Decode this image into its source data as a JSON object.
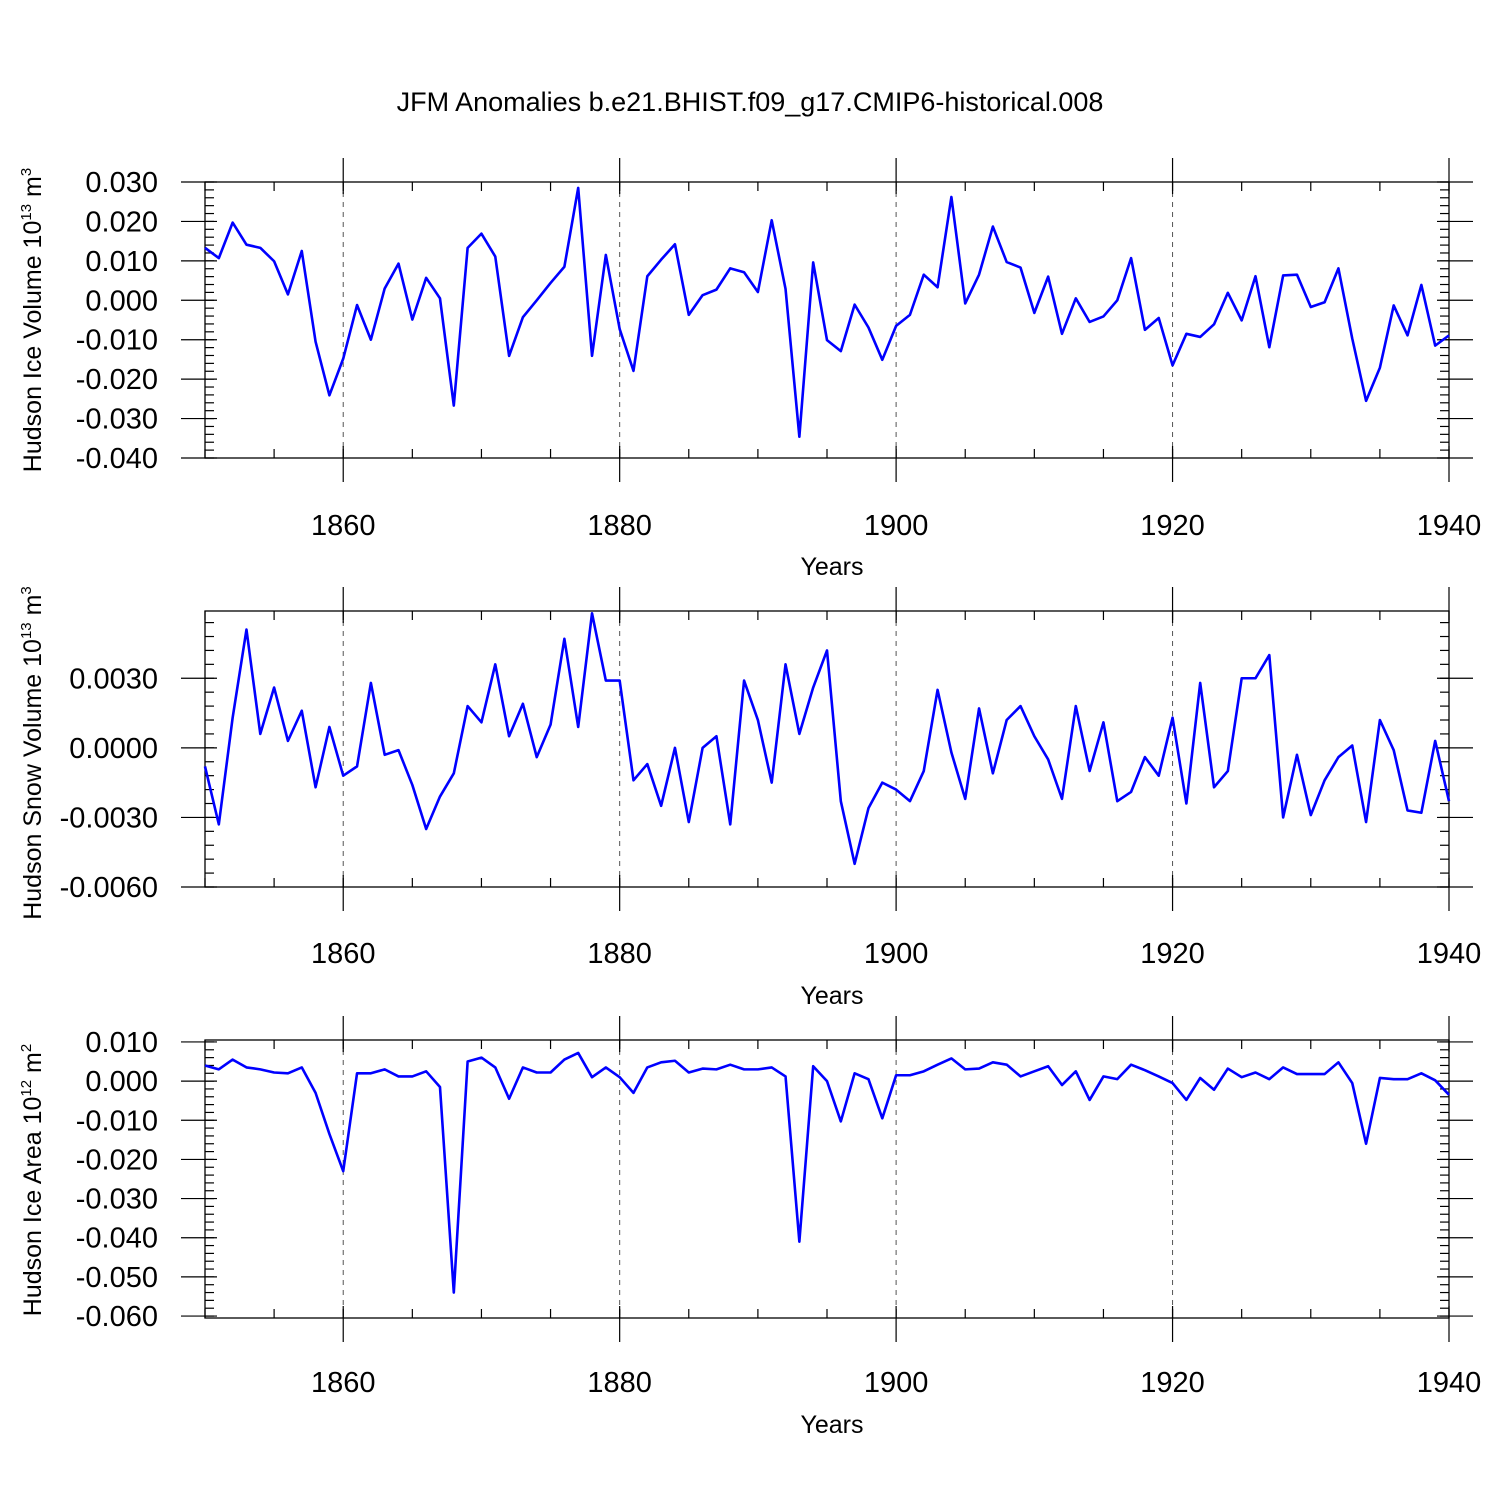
{
  "figure": {
    "title": "JFM Anomalies b.e21.BHIST.f09_g17.CMIP6-historical.008",
    "line_color": "#0000ff"
  },
  "chart_data": [
    {
      "type": "line",
      "ylabel_main": "Hudson Ice Volume 10",
      "ylabel_exp": "13",
      "ylabel_unit": " m",
      "ylabel_unit_exp": "3",
      "xlabel": "Years",
      "xlim": [
        1850,
        1940
      ],
      "ylim": [
        -0.04,
        0.03
      ],
      "yticks": [
        -0.04,
        -0.03,
        -0.02,
        -0.01,
        0.0,
        0.01,
        0.02,
        0.03
      ],
      "ytick_labels": [
        "-0.040",
        "-0.030",
        "-0.020",
        "-0.010",
        "0.000",
        "0.010",
        "0.020",
        "0.030"
      ],
      "xticks": [
        1860,
        1880,
        1900,
        1920,
        1940
      ],
      "xtick_labels": [
        "1860",
        "1880",
        "1900",
        "1920",
        "1940"
      ],
      "grid": "dashed vertical",
      "x_start": 1850,
      "values": [
        0.0133,
        0.0107,
        0.0197,
        0.0141,
        0.0133,
        0.0099,
        0.0015,
        0.0125,
        -0.0105,
        -0.0241,
        -0.0148,
        -0.0012,
        -0.01,
        0.003,
        0.0093,
        -0.0049,
        0.0057,
        0.0005,
        -0.0267,
        0.0133,
        0.0169,
        0.0111,
        -0.0141,
        -0.0043,
        0.0,
        0.0044,
        0.0085,
        0.0285,
        -0.0141,
        0.0115,
        -0.0073,
        -0.0179,
        0.0061,
        0.0103,
        0.0142,
        -0.0037,
        0.0013,
        0.0027,
        0.0081,
        0.0071,
        0.0021,
        0.0203,
        0.0029,
        -0.0346,
        0.0096,
        -0.0101,
        -0.0129,
        -0.0011,
        -0.0069,
        -0.0151,
        -0.0065,
        -0.0037,
        0.0065,
        0.0033,
        0.0262,
        -0.0008,
        0.0065,
        0.0187,
        0.0097,
        0.0083,
        -0.0032,
        0.006,
        -0.0085,
        0.0005,
        -0.0055,
        -0.0041,
        0.0,
        0.0107,
        -0.0075,
        -0.0045,
        -0.0165,
        -0.0085,
        -0.0093,
        -0.0061,
        0.0019,
        -0.0051,
        0.0061,
        -0.0119,
        0.0063,
        0.0065,
        -0.0017,
        -0.0005,
        0.0081,
        -0.0097,
        -0.0255,
        -0.0171,
        -0.0013,
        -0.0089,
        0.0039,
        -0.0115,
        -0.0089
      ]
    },
    {
      "type": "line",
      "ylabel_main": "Hudson Snow Volume 10",
      "ylabel_exp": "13",
      "ylabel_unit": " m",
      "ylabel_unit_exp": "3",
      "xlabel": "Years",
      "xlim": [
        1850,
        1940
      ],
      "ylim": [
        -0.006,
        0.006
      ],
      "yticks": [
        -0.006,
        -0.003,
        0.0,
        0.003
      ],
      "ytick_labels": [
        "-0.0060",
        "-0.0030",
        "0.0000",
        "0.0030"
      ],
      "xticks": [
        1860,
        1880,
        1900,
        1920,
        1940
      ],
      "xtick_labels": [
        "1860",
        "1880",
        "1900",
        "1920",
        "1940"
      ],
      "grid": "dashed vertical",
      "x_start": 1850,
      "values": [
        -0.0008,
        -0.0033,
        0.0013,
        0.0051,
        0.0006,
        0.0026,
        0.0003,
        0.0016,
        -0.0017,
        0.0009,
        -0.0012,
        -0.0008,
        0.0028,
        -0.0003,
        -0.0001,
        -0.0016,
        -0.0035,
        -0.0021,
        -0.0011,
        0.0018,
        0.0011,
        0.0036,
        0.0005,
        0.0019,
        -0.0004,
        0.001,
        0.0047,
        0.0009,
        0.0058,
        0.0029,
        0.0029,
        -0.0014,
        -0.0007,
        -0.0025,
        0.0,
        -0.0032,
        0.0,
        0.0005,
        -0.0033,
        0.0029,
        0.0012,
        -0.0015,
        0.0036,
        0.0006,
        0.0026,
        0.0042,
        -0.0023,
        -0.005,
        -0.0026,
        -0.0015,
        -0.0018,
        -0.0023,
        -0.001,
        0.0025,
        -0.0002,
        -0.0022,
        0.0017,
        -0.0011,
        0.0012,
        0.0018,
        0.0005,
        -0.0005,
        -0.0022,
        0.0018,
        -0.001,
        0.0011,
        -0.0023,
        -0.0019,
        -0.0004,
        -0.0012,
        0.0013,
        -0.0024,
        0.0028,
        -0.0017,
        -0.001,
        0.003,
        0.003,
        0.004,
        -0.003,
        -0.0003,
        -0.0029,
        -0.0014,
        -0.0004,
        0.0001,
        -0.0032,
        0.0012,
        -0.0001,
        -0.0027,
        -0.0028,
        0.0003,
        -0.0023
      ]
    },
    {
      "type": "line",
      "ylabel_main": "Hudson Ice Area 10",
      "ylabel_exp": "12",
      "ylabel_unit": " m",
      "ylabel_unit_exp": "2",
      "xlabel": "Years",
      "xlim": [
        1850,
        1940
      ],
      "ylim": [
        -0.06,
        0.01
      ],
      "yticks": [
        -0.06,
        -0.05,
        -0.04,
        -0.03,
        -0.02,
        -0.01,
        0.0,
        0.01
      ],
      "ytick_labels": [
        "-0.060",
        "-0.050",
        "-0.040",
        "-0.030",
        "-0.020",
        "-0.010",
        "0.000",
        "0.010"
      ],
      "xticks": [
        1860,
        1880,
        1900,
        1920,
        1940
      ],
      "xtick_labels": [
        "1860",
        "1880",
        "1900",
        "1920",
        "1940"
      ],
      "grid": "dashed vertical",
      "x_start": 1850,
      "values": [
        0.004,
        0.003,
        0.0055,
        0.0035,
        0.003,
        0.0022,
        0.002,
        0.0035,
        -0.003,
        -0.0135,
        -0.023,
        0.002,
        0.002,
        0.003,
        0.0012,
        0.0012,
        0.0025,
        -0.0015,
        -0.054,
        0.005,
        0.006,
        0.0035,
        -0.0045,
        0.0035,
        0.0022,
        0.0022,
        0.0055,
        0.0072,
        0.001,
        0.0035,
        0.001,
        -0.003,
        0.0035,
        0.0048,
        0.0052,
        0.0022,
        0.0032,
        0.003,
        0.0042,
        0.003,
        0.003,
        0.0035,
        0.0012,
        -0.041,
        0.0038,
        0.0,
        -0.0103,
        0.002,
        0.0005,
        -0.0095,
        0.0015,
        0.0015,
        0.0025,
        0.0042,
        0.0058,
        0.003,
        0.0032,
        0.0048,
        0.0042,
        0.0012,
        0.0025,
        0.0038,
        -0.001,
        0.0025,
        -0.0048,
        0.0012,
        0.0005,
        0.0042,
        0.0028,
        0.0012,
        -0.0005,
        -0.0048,
        0.0008,
        -0.0022,
        0.0032,
        0.001,
        0.0022,
        0.0005,
        0.0035,
        0.0018,
        0.0018,
        0.0018,
        0.0048,
        -0.0005,
        -0.016,
        0.0008,
        0.0005,
        0.0005,
        0.002,
        0.0002,
        -0.0035
      ]
    }
  ]
}
